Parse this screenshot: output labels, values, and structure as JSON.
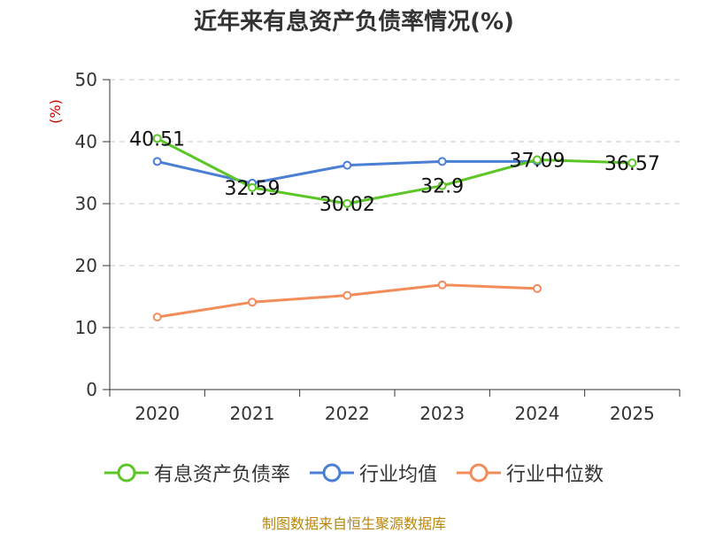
{
  "title": "近年来有息资产负债率情况(%)",
  "source_note": "制图数据来自恒生聚源数据库",
  "colors": {
    "series_1": "#5cc527",
    "series_2": "#4a7fd4",
    "series_3": "#f28d5a",
    "grid": "#c8c8c8",
    "axis": "#333333"
  },
  "chart_data": {
    "type": "line",
    "title": "近年来有息资产负债率情况(%)",
    "ylabel": "(%)",
    "xlabel": "",
    "categories": [
      "2020",
      "2021",
      "2022",
      "2023",
      "2024",
      "2025"
    ],
    "ylim": [
      0,
      50
    ],
    "yticks": [
      0,
      10,
      20,
      30,
      40,
      50
    ],
    "grid": true,
    "legend_position": "bottom",
    "series": [
      {
        "name": "有息资产负债率",
        "values": [
          40.51,
          32.59,
          30.02,
          32.9,
          37.09,
          36.57
        ],
        "labels": [
          "40.51",
          "32.59",
          "30.02",
          "32.9",
          "37.09",
          "36.57"
        ]
      },
      {
        "name": "行业均值",
        "values": [
          36.8,
          33.3,
          36.2,
          36.8,
          36.8,
          null
        ]
      },
      {
        "name": "行业中位数",
        "values": [
          11.7,
          14.1,
          15.2,
          16.9,
          16.3,
          null
        ]
      }
    ]
  }
}
